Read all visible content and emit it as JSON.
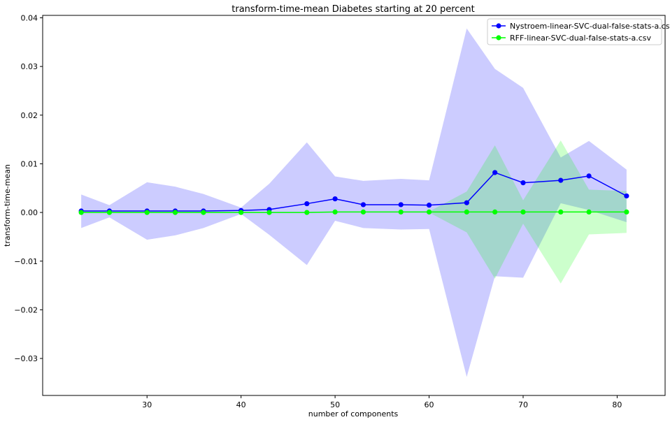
{
  "chart_data": {
    "type": "line",
    "title": "transform-time-mean Diabetes starting at 20 percent",
    "xlabel": "number of components",
    "ylabel": "transform-time-mean",
    "xlim": [
      18.9,
      85.1
    ],
    "ylim": [
      -0.0376,
      0.0405
    ],
    "xticks": [
      30,
      40,
      50,
      60,
      70,
      80
    ],
    "xtick_labels": [
      "30",
      "40",
      "50",
      "60",
      "70",
      "80"
    ],
    "yticks": [
      -0.03,
      -0.02,
      -0.01,
      0.0,
      0.01,
      0.02,
      0.03,
      0.04
    ],
    "ytick_labels": [
      "−0.03",
      "−0.02",
      "−0.01",
      "0.00",
      "0.01",
      "0.02",
      "0.03",
      "0.04"
    ],
    "grid": false,
    "legend_position": "top-right",
    "x": [
      23,
      26,
      30,
      33,
      36,
      40,
      43,
      47,
      50,
      53,
      57,
      60,
      64,
      67,
      70,
      74,
      77,
      81
    ],
    "series": [
      {
        "name": "Nystroem-linear-SVC-dual-false-stats-a.csv",
        "color": "#0000ff",
        "band_color": "#0000ff",
        "values": [
          0.0003,
          0.0003,
          0.0003,
          0.0003,
          0.0003,
          0.0004,
          0.0006,
          0.0018,
          0.0028,
          0.0016,
          0.0016,
          0.0015,
          0.002,
          0.0082,
          0.0061,
          0.0066,
          0.0075,
          0.0034
        ],
        "upper": [
          0.0037,
          0.0015,
          0.0062,
          0.0053,
          0.0038,
          0.001,
          0.0059,
          0.0144,
          0.0074,
          0.0065,
          0.0069,
          0.0066,
          0.0378,
          0.0295,
          0.0256,
          0.0113,
          0.0147,
          0.0088
        ],
        "lower": [
          -0.0032,
          -0.001,
          -0.0056,
          -0.0047,
          -0.0032,
          -0.0003,
          -0.0046,
          -0.0108,
          -0.0017,
          -0.0032,
          -0.0035,
          -0.0034,
          -0.0338,
          -0.0131,
          -0.0134,
          0.0019,
          0.0005,
          -0.002
        ]
      },
      {
        "name": "RFF-linear-SVC-dual-false-stats-a.csv",
        "color": "#00ff00",
        "band_color": "#00ff00",
        "values": [
          0.0,
          0.0,
          0.0,
          0.0,
          0.0,
          0.0,
          0.0,
          0.0,
          0.0001,
          0.0001,
          0.0001,
          0.0001,
          0.0001,
          0.0001,
          0.0001,
          0.0001,
          0.0001,
          0.0001
        ],
        "upper": [
          0.0001,
          0.0001,
          0.0001,
          0.0001,
          0.0001,
          0.0001,
          0.0001,
          0.0001,
          0.0002,
          0.0002,
          0.0002,
          0.0002,
          0.0043,
          0.0138,
          0.0025,
          0.0148,
          0.0047,
          0.0044
        ],
        "lower": [
          -0.0001,
          -0.0001,
          -0.0001,
          -0.0001,
          -0.0001,
          -0.0001,
          -0.0001,
          -0.0001,
          0.0,
          0.0,
          0.0,
          0.0,
          -0.0041,
          -0.0136,
          -0.0023,
          -0.0146,
          -0.0045,
          -0.0042
        ]
      }
    ]
  }
}
